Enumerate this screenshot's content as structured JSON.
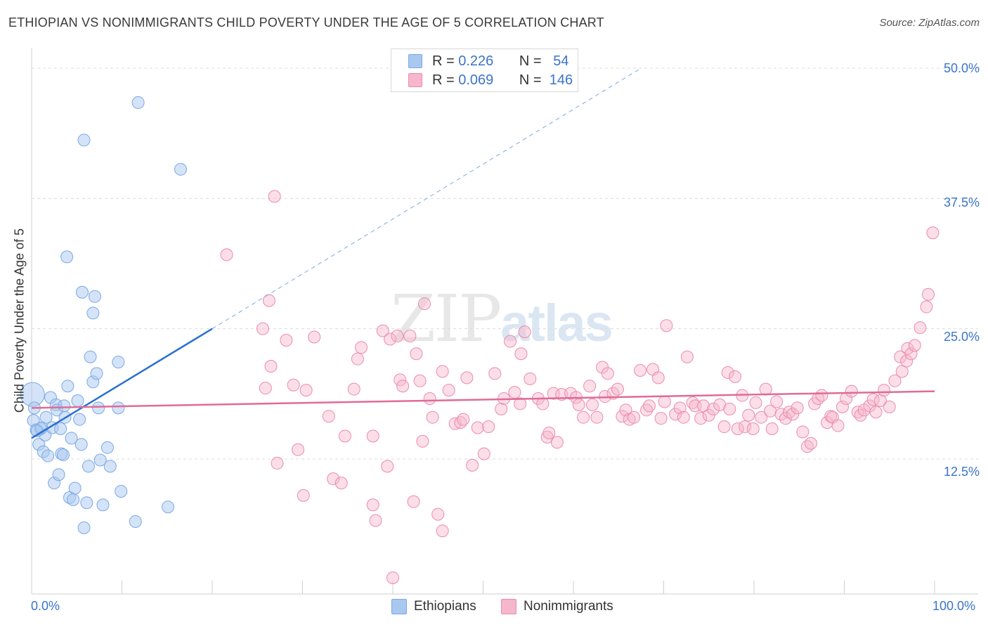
{
  "header": {
    "title": "ETHIOPIAN VS NONIMMIGRANTS CHILD POVERTY UNDER THE AGE OF 5 CORRELATION CHART",
    "source": "Source: ZipAtlas.com"
  },
  "watermark": {
    "zip": "ZIP",
    "atlas": "atlas"
  },
  "legend": {
    "rows": [
      {
        "r_label": "R =",
        "r": "0.226",
        "n_label": "N =",
        "n": "54",
        "color": "#a9c8f0"
      },
      {
        "r_label": "R =",
        "r": "0.069",
        "n_label": "N =",
        "n": "146",
        "color": "#f6b6cb"
      }
    ]
  },
  "bottom_legend": {
    "a": "Ethiopians",
    "b": "Nonimmigrants"
  },
  "axes": {
    "ylabel": "Child Poverty Under the Age of 5",
    "x_left": "0.0%",
    "x_right": "100.0%",
    "y_ticks": [
      "50.0%",
      "37.5%",
      "25.0%",
      "12.5%"
    ]
  },
  "chart_data": {
    "type": "scatter",
    "title": "ETHIOPIAN VS NONIMMIGRANTS CHILD POVERTY UNDER THE AGE OF 5 CORRELATION CHART",
    "xlabel": "",
    "ylabel": "Child Poverty Under the Age of 5",
    "xlim": [
      0,
      100
    ],
    "ylim": [
      0,
      50
    ],
    "y_ticks": [
      12.5,
      25.0,
      37.5,
      50.0
    ],
    "grid": true,
    "legend_position": "top-center",
    "series": [
      {
        "name": "Ethiopians",
        "color": "#7aa9e6",
        "fill": "#a9c8f0",
        "trend": {
          "x0": 0,
          "y0": 14.5,
          "x1": 20,
          "y1": 25.0,
          "extended_to": {
            "x": 67.5,
            "y": 50.0
          }
        },
        "points": [
          [
            0.1,
            18.7
          ],
          [
            0.3,
            17.4
          ],
          [
            0.2,
            16.2
          ],
          [
            0.5,
            15.3
          ],
          [
            0.8,
            13.9
          ],
          [
            1.0,
            15.4
          ],
          [
            1.3,
            13.2
          ],
          [
            1.5,
            14.8
          ],
          [
            1.6,
            16.5
          ],
          [
            1.8,
            12.8
          ],
          [
            2.1,
            18.4
          ],
          [
            2.3,
            15.5
          ],
          [
            2.5,
            10.2
          ],
          [
            2.7,
            17.7
          ],
          [
            2.8,
            17.2
          ],
          [
            3.0,
            11.0
          ],
          [
            3.3,
            13.0
          ],
          [
            3.5,
            12.9
          ],
          [
            3.6,
            17.6
          ],
          [
            3.7,
            16.5
          ],
          [
            3.9,
            31.9
          ],
          [
            4.0,
            19.5
          ],
          [
            4.2,
            8.8
          ],
          [
            4.4,
            14.5
          ],
          [
            4.6,
            8.6
          ],
          [
            4.8,
            9.7
          ],
          [
            5.1,
            18.1
          ],
          [
            5.3,
            16.3
          ],
          [
            5.5,
            13.9
          ],
          [
            5.6,
            28.5
          ],
          [
            5.8,
            5.9
          ],
          [
            5.8,
            43.1
          ],
          [
            6.1,
            8.3
          ],
          [
            6.3,
            11.8
          ],
          [
            6.5,
            22.3
          ],
          [
            6.8,
            19.9
          ],
          [
            6.8,
            26.5
          ],
          [
            7.0,
            28.1
          ],
          [
            7.2,
            20.7
          ],
          [
            7.4,
            17.4
          ],
          [
            7.6,
            12.4
          ],
          [
            7.9,
            8.1
          ],
          [
            8.4,
            13.6
          ],
          [
            8.7,
            11.8
          ],
          [
            9.6,
            21.8
          ],
          [
            9.6,
            17.4
          ],
          [
            9.9,
            9.4
          ],
          [
            11.5,
            6.5
          ],
          [
            11.8,
            46.7
          ],
          [
            15.1,
            7.9
          ],
          [
            16.5,
            40.3
          ],
          [
            3.2,
            15.4
          ],
          [
            1.1,
            15.5
          ],
          [
            0.6,
            15.2
          ]
        ]
      },
      {
        "name": "Nonimmigrants",
        "color": "#ea8cac",
        "fill": "#f6b6cb",
        "trend": {
          "x0": 0,
          "y0": 17.4,
          "x1": 100,
          "y1": 19.0
        },
        "points": [
          [
            21.6,
            32.1
          ],
          [
            25.6,
            25.0
          ],
          [
            25.9,
            19.3
          ],
          [
            26.3,
            27.7
          ],
          [
            26.5,
            21.4
          ],
          [
            26.9,
            37.7
          ],
          [
            27.2,
            12.1
          ],
          [
            28.2,
            23.9
          ],
          [
            29.0,
            19.6
          ],
          [
            29.5,
            13.4
          ],
          [
            30.1,
            9.0
          ],
          [
            30.4,
            19.1
          ],
          [
            31.3,
            24.2
          ],
          [
            32.9,
            16.6
          ],
          [
            33.4,
            10.6
          ],
          [
            34.3,
            10.2
          ],
          [
            34.7,
            14.7
          ],
          [
            35.7,
            19.2
          ],
          [
            36.1,
            22.1
          ],
          [
            36.5,
            23.2
          ],
          [
            37.8,
            8.1
          ],
          [
            37.8,
            14.7
          ],
          [
            38.1,
            6.6
          ],
          [
            38.9,
            24.8
          ],
          [
            39.4,
            11.8
          ],
          [
            39.7,
            24.0
          ],
          [
            40.0,
            1.1
          ],
          [
            40.5,
            24.3
          ],
          [
            40.8,
            20.1
          ],
          [
            41.1,
            19.5
          ],
          [
            41.9,
            24.3
          ],
          [
            42.3,
            8.4
          ],
          [
            42.6,
            22.6
          ],
          [
            43.0,
            20.0
          ],
          [
            43.3,
            14.2
          ],
          [
            43.5,
            27.4
          ],
          [
            44.1,
            18.3
          ],
          [
            44.4,
            16.5
          ],
          [
            45.0,
            7.2
          ],
          [
            45.5,
            5.6
          ],
          [
            45.5,
            20.9
          ],
          [
            46.2,
            19.1
          ],
          [
            46.9,
            15.9
          ],
          [
            47.5,
            16.0
          ],
          [
            47.8,
            16.3
          ],
          [
            48.2,
            20.3
          ],
          [
            48.8,
            11.9
          ],
          [
            49.4,
            15.5
          ],
          [
            50.1,
            13.0
          ],
          [
            50.6,
            15.6
          ],
          [
            51.3,
            20.7
          ],
          [
            52.0,
            17.3
          ],
          [
            52.3,
            18.3
          ],
          [
            53.0,
            23.8
          ],
          [
            53.5,
            18.9
          ],
          [
            54.1,
            17.8
          ],
          [
            54.2,
            22.6
          ],
          [
            54.6,
            24.7
          ],
          [
            55.2,
            20.2
          ],
          [
            56.1,
            18.3
          ],
          [
            56.6,
            17.8
          ],
          [
            57.1,
            14.6
          ],
          [
            57.3,
            15.0
          ],
          [
            57.8,
            18.8
          ],
          [
            58.2,
            14.1
          ],
          [
            58.7,
            18.7
          ],
          [
            59.7,
            18.8
          ],
          [
            60.3,
            18.4
          ],
          [
            60.6,
            17.7
          ],
          [
            61.1,
            16.5
          ],
          [
            61.8,
            19.5
          ],
          [
            62.1,
            17.7
          ],
          [
            62.6,
            16.5
          ],
          [
            63.2,
            21.3
          ],
          [
            63.5,
            18.5
          ],
          [
            63.8,
            20.7
          ],
          [
            64.4,
            18.8
          ],
          [
            64.9,
            19.2
          ],
          [
            65.4,
            16.6
          ],
          [
            65.8,
            17.2
          ],
          [
            66.2,
            16.3
          ],
          [
            66.7,
            16.5
          ],
          [
            67.4,
            21.0
          ],
          [
            68.1,
            17.2
          ],
          [
            68.4,
            17.6
          ],
          [
            68.8,
            21.1
          ],
          [
            69.4,
            20.3
          ],
          [
            69.7,
            16.4
          ],
          [
            70.1,
            18.0
          ],
          [
            70.3,
            25.3
          ],
          [
            71.3,
            16.8
          ],
          [
            71.8,
            17.4
          ],
          [
            72.2,
            16.5
          ],
          [
            72.6,
            22.3
          ],
          [
            73.2,
            17.9
          ],
          [
            73.5,
            17.6
          ],
          [
            74.1,
            16.4
          ],
          [
            74.4,
            17.6
          ],
          [
            75.0,
            16.7
          ],
          [
            75.5,
            17.3
          ],
          [
            76.2,
            17.7
          ],
          [
            76.7,
            15.6
          ],
          [
            77.1,
            20.8
          ],
          [
            77.3,
            17.3
          ],
          [
            77.9,
            20.4
          ],
          [
            78.2,
            15.4
          ],
          [
            78.7,
            18.6
          ],
          [
            79.0,
            15.6
          ],
          [
            79.4,
            16.7
          ],
          [
            79.9,
            15.4
          ],
          [
            80.2,
            17.9
          ],
          [
            80.8,
            16.5
          ],
          [
            81.3,
            19.2
          ],
          [
            81.8,
            17.1
          ],
          [
            82.0,
            15.4
          ],
          [
            82.5,
            18.0
          ],
          [
            83.0,
            16.8
          ],
          [
            83.5,
            16.4
          ],
          [
            83.9,
            17.0
          ],
          [
            84.3,
            16.8
          ],
          [
            84.8,
            17.4
          ],
          [
            85.4,
            15.1
          ],
          [
            85.9,
            13.7
          ],
          [
            86.3,
            14.0
          ],
          [
            86.7,
            17.8
          ],
          [
            87.1,
            18.3
          ],
          [
            87.5,
            18.6
          ],
          [
            88.1,
            16.0
          ],
          [
            88.5,
            16.6
          ],
          [
            88.7,
            16.5
          ],
          [
            89.3,
            15.7
          ],
          [
            89.8,
            17.5
          ],
          [
            90.2,
            18.3
          ],
          [
            90.8,
            19.0
          ],
          [
            91.5,
            17.0
          ],
          [
            91.8,
            16.7
          ],
          [
            92.2,
            17.2
          ],
          [
            92.8,
            17.6
          ],
          [
            93.2,
            18.2
          ],
          [
            93.5,
            17.0
          ],
          [
            94.0,
            18.1
          ],
          [
            94.4,
            19.1
          ],
          [
            95.0,
            17.5
          ],
          [
            95.6,
            20.0
          ],
          [
            96.4,
            20.9
          ],
          [
            97.0,
            23.1
          ]
        ]
      }
    ],
    "extra_points_nonimmigrants": [
      [
        96.2,
        22.3
      ],
      [
        96.9,
        21.9
      ],
      [
        97.4,
        22.6
      ],
      [
        97.8,
        23.4
      ],
      [
        98.4,
        25.1
      ],
      [
        99.1,
        27.1
      ],
      [
        99.3,
        28.3
      ],
      [
        99.8,
        34.2
      ]
    ]
  }
}
